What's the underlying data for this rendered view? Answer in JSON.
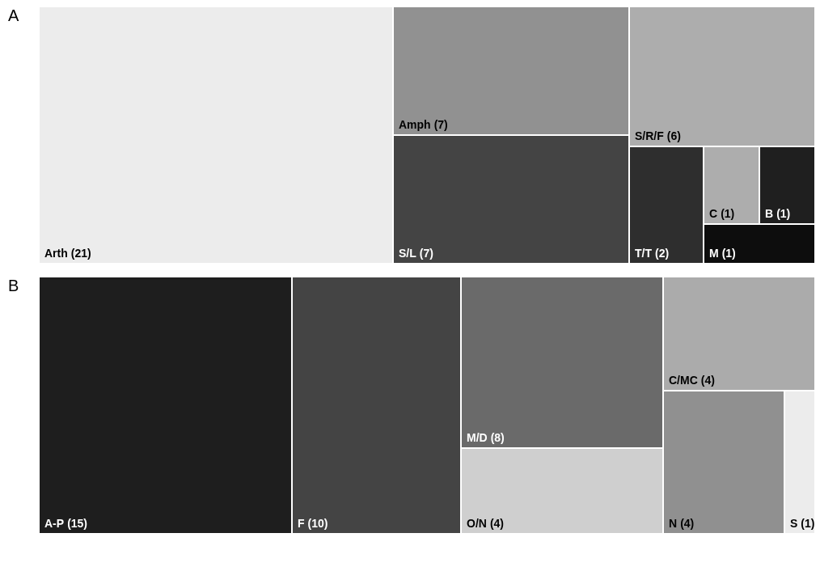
{
  "chart_data": [
    {
      "type": "other",
      "title": "A",
      "categories": [
        "Arth",
        "Amph",
        "S/L",
        "S/R/F",
        "T/T",
        "C",
        "B",
        "M"
      ],
      "values": [
        21,
        7,
        7,
        6,
        2,
        1,
        1,
        1
      ],
      "value_labels": [
        "(21)",
        "(7)",
        "(7)",
        "(6)",
        "(2)",
        "(1)",
        "(1)",
        "(1)"
      ],
      "colors": [
        "#ececec",
        "#919191",
        "#444444",
        "#adadad",
        "#2e2e2e",
        "#adadad",
        "#1f1f1f",
        "#0d0d0d"
      ]
    },
    {
      "type": "other",
      "title": "B",
      "categories": [
        "A-P",
        "F",
        "M/D",
        "O/N",
        "C/MC",
        "N",
        "S"
      ],
      "values": [
        15,
        10,
        8,
        4,
        4,
        4,
        1
      ],
      "value_labels": [
        "(15)",
        "(10)",
        "(8)",
        "(4)",
        "(4)",
        "(4)",
        "(1)"
      ],
      "colors": [
        "#1e1e1e",
        "#444444",
        "#6a6a6a",
        "#cfcfcf",
        "#ababab",
        "#909090",
        "#ececec"
      ]
    }
  ]
}
